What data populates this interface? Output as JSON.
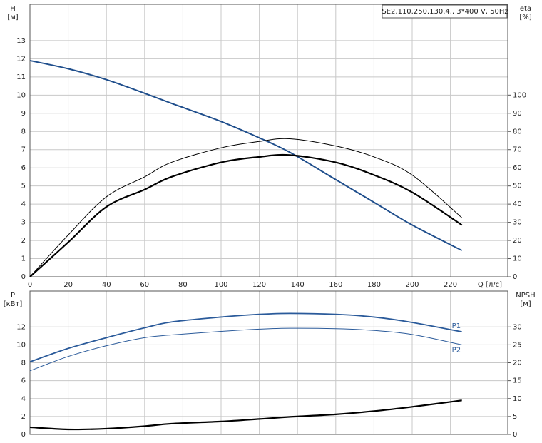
{
  "chart_data": [
    {
      "type": "line",
      "title": "SE2.110.250.130.4., 3*400 V, 50Hz",
      "xlabel": "Q [л/с]",
      "ylabel": [
        "H",
        "[м]"
      ],
      "y2label": [
        "eta",
        "[%]"
      ],
      "x": [
        0,
        20,
        40,
        60,
        74,
        100,
        120,
        136,
        160,
        180,
        200,
        226
      ],
      "xlim": [
        0,
        250
      ],
      "xticks": [
        0,
        20,
        40,
        60,
        80,
        100,
        120,
        140,
        160,
        180,
        200,
        220
      ],
      "ylim": [
        0,
        15
      ],
      "yticks": [
        0,
        1,
        2,
        3,
        4,
        5,
        6,
        7,
        8,
        9,
        10,
        11,
        12,
        13
      ],
      "y2lim": [
        0,
        150
      ],
      "y2ticks": [
        0,
        10,
        20,
        30,
        40,
        50,
        60,
        70,
        80,
        90,
        100
      ],
      "grid": true,
      "series": [
        {
          "color": "#1f4e8c",
          "linewidth": 2,
          "values": [
            11.9,
            11.45,
            10.85,
            10.1,
            9.55,
            8.55,
            7.65,
            6.85,
            5.35,
            4.1,
            2.85,
            1.45
          ]
        },
        {
          "color": "#000000",
          "linewidth": 1,
          "axis": "y2",
          "values": [
            0,
            23,
            44,
            55,
            63,
            71,
            74.5,
            76,
            72,
            66,
            56,
            32.5
          ]
        },
        {
          "color": "#000000",
          "linewidth": 2.2,
          "axis": "y2",
          "values": [
            0,
            19,
            38.5,
            48,
            55,
            63,
            66,
            67,
            63,
            56,
            46.5,
            28.5
          ]
        }
      ]
    },
    {
      "type": "line",
      "ylabel": [
        "P",
        "[кВт]"
      ],
      "y2label": [
        "NPSH",
        "[м]"
      ],
      "x": [
        0,
        20,
        40,
        60,
        74,
        100,
        120,
        136,
        160,
        180,
        200,
        226
      ],
      "xlim": [
        0,
        250
      ],
      "ylim": [
        0,
        16
      ],
      "yticks": [
        0,
        2,
        4,
        6,
        8,
        10,
        12
      ],
      "y2lim": [
        0,
        40
      ],
      "y2ticks": [
        0,
        5,
        10,
        15,
        20,
        25,
        30
      ],
      "grid": true,
      "legend": "line-end",
      "series": [
        {
          "name": "P1",
          "color": "#2a5a9a",
          "linewidth": 1.8,
          "values": [
            8.1,
            9.6,
            10.8,
            11.9,
            12.55,
            13.1,
            13.4,
            13.5,
            13.4,
            13.1,
            12.5,
            11.45
          ]
        },
        {
          "name": "P2",
          "color": "#2a5a9a",
          "linewidth": 1,
          "values": [
            7.1,
            8.7,
            9.9,
            10.8,
            11.1,
            11.5,
            11.75,
            11.85,
            11.8,
            11.6,
            11.15,
            10.0
          ]
        },
        {
          "color": "#000000",
          "linewidth": 2.2,
          "axis": "y2",
          "values": [
            2.0,
            1.4,
            1.6,
            2.3,
            3.0,
            3.6,
            4.3,
            4.9,
            5.6,
            6.5,
            7.7,
            9.5
          ]
        }
      ]
    }
  ]
}
